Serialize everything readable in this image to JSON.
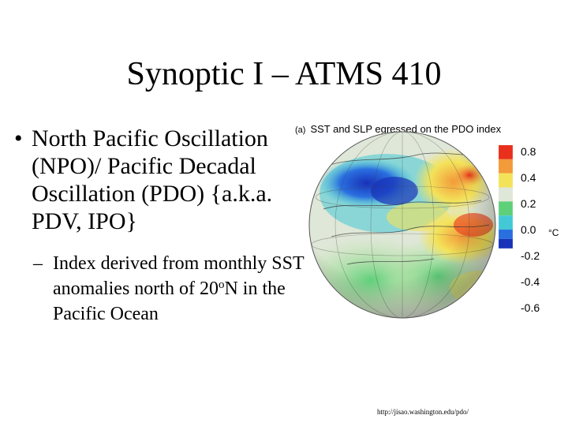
{
  "slide": {
    "title": "Synoptic I – ATMS 410",
    "bullet": {
      "marker": "•",
      "text": "North Pacific Oscillation (NPO)/ Pacific Decadal Oscillation (PDO) {a.k.a. PDV, IPO}"
    },
    "sub_bullet": {
      "marker": "–",
      "text_before": "Index derived from monthly SST anomalies north of 20",
      "superscript": "o",
      "text_after": "N in the Pacific Ocean"
    },
    "source_url": "http://jisao.washington.edu/pdo/"
  },
  "figure": {
    "panel_label": "(a)",
    "caption": "SST and SLP egressed on the PDO index",
    "unit": "°C",
    "colorbar_labels": [
      "0.8",
      "0.4",
      "0.2",
      "0.0",
      "-0.2",
      "-0.4",
      "-0.6"
    ],
    "colors": {
      "red": "#e8301c",
      "orange": "#f39a3a",
      "yellow": "#f3e35a",
      "light_green": "#b8e59a",
      "neutral": "#dfe7d8",
      "green": "#5fd07a",
      "cyan": "#43c9d6",
      "blue": "#2a6fe0",
      "dark_blue": "#1832b8"
    }
  }
}
